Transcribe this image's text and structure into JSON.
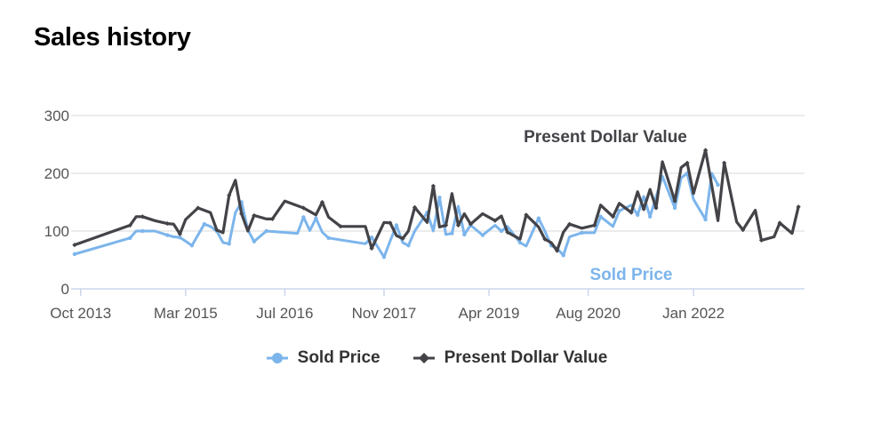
{
  "page": {
    "title": "Sales history"
  },
  "chart_data": {
    "type": "line",
    "title": "",
    "xlabel": "",
    "ylabel": "",
    "ylim": [
      0,
      300
    ],
    "yticks": [
      0,
      100,
      200,
      300
    ],
    "xlim": [
      "2013-08-15",
      "2023-07-01"
    ],
    "xticks": [
      {
        "date": "2013-10-01",
        "label": "Oct 2013"
      },
      {
        "date": "2015-03-01",
        "label": "Mar 2015"
      },
      {
        "date": "2016-07-01",
        "label": "Jul 2016"
      },
      {
        "date": "2017-11-01",
        "label": "Nov 2017"
      },
      {
        "date": "2019-04-01",
        "label": "Apr 2019"
      },
      {
        "date": "2020-08-01",
        "label": "Aug 2020"
      },
      {
        "date": "2022-01-01",
        "label": "Jan 2022"
      }
    ],
    "grid": true,
    "legend": "bottom",
    "series": [
      {
        "name": "Sold Price",
        "color": "#7cb5ec",
        "marker": "circle",
        "label": "Sold Price",
        "x": [
          "2013-09-01",
          "2014-06-01",
          "2014-07-01",
          "2014-08-01",
          "2014-10-01",
          "2014-12-01",
          "2015-01-01",
          "2015-02-01",
          "2015-04-01",
          "2015-06-01",
          "2015-07-01",
          "2015-08-01",
          "2015-09-01",
          "2015-10-01",
          "2015-11-01",
          "2015-12-01",
          "2016-01-01",
          "2016-02-01",
          "2016-04-01",
          "2016-09-01",
          "2016-10-01",
          "2016-11-01",
          "2016-12-01",
          "2017-01-01",
          "2017-02-01",
          "2017-08-01",
          "2017-09-01",
          "2017-11-01",
          "2017-12-01",
          "2018-01-01",
          "2018-02-01",
          "2018-03-01",
          "2018-04-01",
          "2018-06-01",
          "2018-07-01",
          "2018-08-01",
          "2018-09-01",
          "2018-10-01",
          "2018-11-01",
          "2018-12-01",
          "2019-01-01",
          "2019-03-01",
          "2019-05-01",
          "2019-06-01",
          "2019-07-01",
          "2019-09-01",
          "2019-10-01",
          "2019-12-01",
          "2020-01-01",
          "2020-02-01",
          "2020-03-01",
          "2020-04-01",
          "2020-05-01",
          "2020-07-01",
          "2020-09-01",
          "2020-10-01",
          "2020-12-01",
          "2021-01-01",
          "2021-03-01",
          "2021-04-01",
          "2021-05-01",
          "2021-06-01",
          "2021-08-01",
          "2021-10-01",
          "2021-11-01",
          "2021-12-01",
          "2022-01-01",
          "2022-03-01",
          "2022-04-01",
          "2022-05-01"
        ],
        "values": [
          60,
          88,
          100,
          100,
          100,
          93,
          90,
          89,
          75,
          112,
          108,
          100,
          80,
          78,
          132,
          150,
          102,
          82,
          100,
          96,
          124,
          101,
          122,
          98,
          88,
          78,
          89,
          55,
          83,
          110,
          80,
          75,
          100,
          132,
          100,
          158,
          94,
          96,
          143,
          94,
          110,
          93,
          110,
          100,
          108,
          80,
          74,
          122,
          100,
          75,
          70,
          58,
          90,
          97,
          97,
          125,
          108,
          135,
          145,
          128,
          160,
          125,
          195,
          140,
          192,
          200,
          155,
          120,
          200,
          180
        ],
        "point_dates": [
          "2013-09-01",
          "2014-06-01",
          "2014-08-01",
          "2014-12-01",
          "2015-02-01",
          "2015-04-01",
          "2015-06-01",
          "2015-08-01",
          "2015-10-01",
          "2015-12-01",
          "2016-02-01",
          "2016-04-01",
          "2016-10-01",
          "2016-12-01",
          "2017-02-01",
          "2017-09-01",
          "2017-11-01",
          "2018-01-01",
          "2018-03-01",
          "2018-06-01",
          "2018-08-01",
          "2018-10-01",
          "2018-12-01",
          "2019-03-01",
          "2019-06-01",
          "2019-09-01",
          "2019-12-01",
          "2020-02-01",
          "2020-04-01",
          "2020-07-01",
          "2020-10-01",
          "2021-01-01",
          "2021-04-01",
          "2021-06-01",
          "2021-10-01",
          "2021-12-01",
          "2022-03-01",
          "2022-05-01"
        ]
      },
      {
        "name": "Present Dollar Value",
        "color": "#434348",
        "marker": "diamond",
        "label": "Present Dollar Value",
        "x": [
          "2013-09-01",
          "2014-06-01",
          "2014-07-01",
          "2014-08-01",
          "2014-10-01",
          "2014-12-01",
          "2015-01-01",
          "2015-02-01",
          "2015-03-01",
          "2015-05-01",
          "2015-07-01",
          "2015-08-01",
          "2015-09-01",
          "2015-10-01",
          "2015-11-01",
          "2015-12-01",
          "2016-01-01",
          "2016-02-01",
          "2016-04-01",
          "2016-05-01",
          "2016-07-01",
          "2016-10-01",
          "2016-12-01",
          "2017-01-01",
          "2017-02-01",
          "2017-04-01",
          "2017-08-01",
          "2017-09-01",
          "2017-11-01",
          "2017-12-01",
          "2018-01-01",
          "2018-02-01",
          "2018-03-01",
          "2018-04-01",
          "2018-06-01",
          "2018-07-01",
          "2018-08-01",
          "2018-09-01",
          "2018-10-01",
          "2018-11-01",
          "2018-12-01",
          "2019-01-01",
          "2019-03-01",
          "2019-05-01",
          "2019-06-01",
          "2019-07-01",
          "2019-09-01",
          "2019-10-01",
          "2019-12-01",
          "2020-01-01",
          "2020-02-01",
          "2020-03-01",
          "2020-04-01",
          "2020-05-01",
          "2020-07-01",
          "2020-09-01",
          "2020-10-01",
          "2020-12-01",
          "2021-01-01",
          "2021-03-01",
          "2021-04-01",
          "2021-05-01",
          "2021-06-01",
          "2021-07-01",
          "2021-08-01",
          "2021-10-01",
          "2021-11-01",
          "2021-12-01",
          "2022-01-01",
          "2022-03-01",
          "2022-05-01",
          "2022-06-01",
          "2022-08-01",
          "2022-09-01",
          "2022-11-01",
          "2022-12-01",
          "2023-02-01",
          "2023-03-01",
          "2023-05-01",
          "2023-06-01"
        ],
        "values": [
          76,
          110,
          125,
          125,
          118,
          113,
          112,
          95,
          120,
          140,
          132,
          102,
          97,
          162,
          188,
          130,
          100,
          127,
          121,
          121,
          152,
          140,
          128,
          150,
          124,
          108,
          108,
          70,
          115,
          114,
          92,
          87,
          100,
          141,
          115,
          178,
          107,
          110,
          165,
          110,
          130,
          112,
          130,
          118,
          126,
          98,
          86,
          128,
          107,
          86,
          80,
          66,
          98,
          112,
          105,
          110,
          145,
          125,
          148,
          132,
          168,
          138,
          172,
          140,
          220,
          152,
          210,
          218,
          165,
          240,
          118,
          218,
          116,
          102,
          136,
          84,
          90,
          114,
          96,
          142
        ],
        "point_dates": [
          "2013-09-01",
          "2014-06-01",
          "2014-08-01",
          "2014-12-01",
          "2015-02-01",
          "2015-05-01",
          "2015-08-01",
          "2015-10-01",
          "2015-12-01",
          "2016-02-01",
          "2016-05-01",
          "2016-10-01",
          "2017-01-01",
          "2017-04-01",
          "2017-09-01",
          "2017-12-01",
          "2018-02-01",
          "2018-04-01",
          "2018-07-01",
          "2018-09-01",
          "2018-11-01",
          "2019-01-01",
          "2019-05-01",
          "2019-07-01",
          "2019-10-01",
          "2020-01-01",
          "2020-03-01",
          "2020-05-01",
          "2020-09-01",
          "2020-12-01",
          "2021-03-01",
          "2021-05-01",
          "2021-07-01",
          "2021-10-01",
          "2021-12-01",
          "2022-03-01",
          "2022-06-01",
          "2022-09-01",
          "2022-12-01",
          "2023-03-01",
          "2023-06-01"
        ]
      }
    ]
  },
  "legend": {
    "items": [
      {
        "name": "Sold Price",
        "color": "#7cb5ec",
        "marker": "circle"
      },
      {
        "name": "Present Dollar Value",
        "color": "#434348",
        "marker": "diamond"
      }
    ]
  }
}
